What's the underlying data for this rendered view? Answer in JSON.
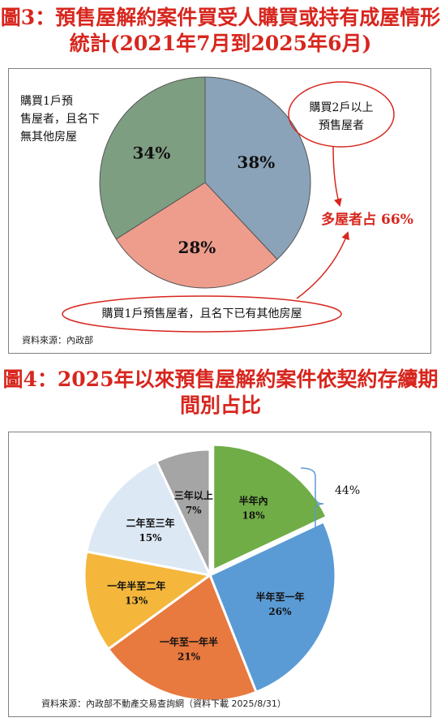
{
  "figure3": {
    "title_line1": "圖3：預售屋解約案件買受人購買或持有成屋情形",
    "title_line2": "統計(2021年7月到2025年6月)",
    "source": "資料來源：內政部",
    "callout_top_right_line1": "購買2戶以上",
    "callout_top_right_line2": "預售屋者",
    "callout_bottom": "購買1戶預售屋者，且名下已有其他房屋",
    "label_top_left_line1": "購買1戶預",
    "label_top_left_line2": "售屋者，且名下",
    "label_top_left_line3": "無其他房屋",
    "summary": "多屋者占 66%",
    "colors": {
      "blue": "#8aa3b9",
      "green": "#7e9e82",
      "salmon": "#ee9d8d",
      "accent": "#d7261e"
    }
  },
  "figure4": {
    "title_line1": "圖4：2025年以來預售屋解約案件依契約存續期",
    "title_line2": "間別占比",
    "source": "資料來源：內政部不動產交易查詢網（資料下載 2025/8/31）",
    "brace_label": "44%"
  },
  "chart_data": [
    {
      "type": "pie",
      "slices": [
        {
          "label": "38%",
          "value": 38,
          "color": "#8aa3b9"
        },
        {
          "label": "28%",
          "value": 28,
          "color": "#ee9d8d"
        },
        {
          "label": "34%",
          "value": 34,
          "color": "#7e9e82"
        }
      ]
    },
    {
      "type": "pie",
      "slices": [
        {
          "name": "半年內",
          "label": "18%",
          "value": 18,
          "color": "#70ad47"
        },
        {
          "name": "半年至一年",
          "label": "26%",
          "value": 26,
          "color": "#5b9bd5"
        },
        {
          "name": "一年至一年半",
          "label": "21%",
          "value": 21,
          "color": "#e8793f"
        },
        {
          "name": "一年半至二年",
          "label": "13%",
          "value": 13,
          "color": "#f4b73c"
        },
        {
          "name": "二年至三年",
          "label": "15%",
          "value": 15,
          "color": "#dce8f4"
        },
        {
          "name": "三年以上",
          "label": "7%",
          "value": 7,
          "color": "#a5a5a5"
        }
      ]
    }
  ]
}
